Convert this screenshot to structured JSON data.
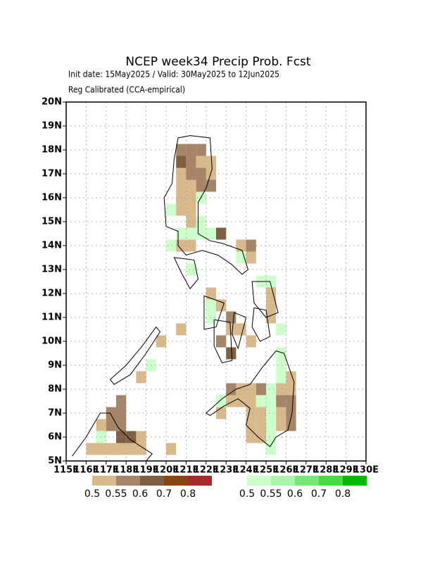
{
  "chart_data": {
    "type": "grid-map",
    "title": "NCEP week34 Precip Prob. Fcst",
    "subtitle": "Init date: 15May2025 / Valid: 30May2025 to 12Jun2025",
    "note": "Reg Calibrated (CCA-empirical)",
    "xlim": [
      115,
      130
    ],
    "ylim": [
      5,
      20
    ],
    "xticks": [
      {
        "value": 115,
        "label": "115E"
      },
      {
        "value": 116,
        "label": "116E"
      },
      {
        "value": 117,
        "label": "117E"
      },
      {
        "value": 118,
        "label": "118E"
      },
      {
        "value": 119,
        "label": "119E"
      },
      {
        "value": 120,
        "label": "120E"
      },
      {
        "value": 121,
        "label": "121E"
      },
      {
        "value": 122,
        "label": "122E"
      },
      {
        "value": 123,
        "label": "123E"
      },
      {
        "value": 124,
        "label": "124E"
      },
      {
        "value": 125,
        "label": "125E"
      },
      {
        "value": 126,
        "label": "126E"
      },
      {
        "value": 127,
        "label": "127E"
      },
      {
        "value": 128,
        "label": "128E"
      },
      {
        "value": 129,
        "label": "129E"
      },
      {
        "value": 130,
        "label": "130E"
      }
    ],
    "yticks": [
      {
        "value": 5,
        "label": "5N"
      },
      {
        "value": 6,
        "label": "6N"
      },
      {
        "value": 7,
        "label": "7N"
      },
      {
        "value": 8,
        "label": "8N"
      },
      {
        "value": 9,
        "label": "9N"
      },
      {
        "value": 10,
        "label": "10N"
      },
      {
        "value": 11,
        "label": "11N"
      },
      {
        "value": 12,
        "label": "12N"
      },
      {
        "value": 13,
        "label": "13N"
      },
      {
        "value": 14,
        "label": "14N"
      },
      {
        "value": 15,
        "label": "15N"
      },
      {
        "value": 16,
        "label": "16N"
      },
      {
        "value": 17,
        "label": "17N"
      },
      {
        "value": 18,
        "label": "18N"
      },
      {
        "value": 19,
        "label": "19N"
      },
      {
        "value": 20,
        "label": "20N"
      }
    ],
    "grid": true,
    "cell_size": 0.5,
    "dry_colors": [
      "#d8b98c",
      "#a68467",
      "#7f5f43",
      "#8b4513",
      "#a52a2a"
    ],
    "wet_colors": [
      "#ccffcc",
      "#aaf5aa",
      "#77e877",
      "#44dd44",
      "#00bb00"
    ],
    "colorbar_labels": [
      0.5,
      0.55,
      0.6,
      0.7,
      0.8
    ],
    "cells": [
      [
        120.5,
        17.75,
        2
      ],
      [
        121,
        17.75,
        2
      ],
      [
        121.5,
        17.75,
        2
      ],
      [
        120.5,
        17.25,
        3
      ],
      [
        121,
        17.25,
        2
      ],
      [
        121.5,
        17.25,
        1
      ],
      [
        122,
        17.25,
        1
      ],
      [
        120.5,
        16.75,
        1
      ],
      [
        121,
        16.75,
        2
      ],
      [
        121.5,
        16.75,
        2
      ],
      [
        122,
        16.75,
        1
      ],
      [
        120.5,
        16.25,
        1
      ],
      [
        121,
        16.25,
        1
      ],
      [
        121.5,
        16.25,
        2
      ],
      [
        122,
        16.25,
        2
      ],
      [
        120.5,
        15.75,
        1
      ],
      [
        121,
        15.75,
        1
      ],
      [
        121.5,
        15.75,
        -1
      ],
      [
        120,
        15.25,
        -1
      ],
      [
        120.5,
        15.25,
        1
      ],
      [
        121,
        15.25,
        1
      ],
      [
        121,
        14.75,
        1
      ],
      [
        121.5,
        14.75,
        -1
      ],
      [
        122,
        14.25,
        -1
      ],
      [
        120.5,
        14.25,
        -1
      ],
      [
        121,
        14.25,
        -1
      ],
      [
        121.5,
        14.25,
        -1
      ],
      [
        122.5,
        14.25,
        3
      ],
      [
        120,
        13.75,
        -1
      ],
      [
        120.5,
        13.75,
        1
      ],
      [
        121,
        13.75,
        1
      ],
      [
        121,
        12.75,
        -1
      ],
      [
        123.5,
        13.75,
        1
      ],
      [
        124,
        13.75,
        2
      ],
      [
        124,
        13.25,
        1
      ],
      [
        123.5,
        13.25,
        -1
      ],
      [
        122,
        11.75,
        1
      ],
      [
        122,
        11.25,
        -1
      ],
      [
        122.5,
        11.25,
        1
      ],
      [
        122,
        10.75,
        -1
      ],
      [
        123,
        10.75,
        2
      ],
      [
        123,
        10.25,
        1
      ],
      [
        122.5,
        9.75,
        2
      ],
      [
        123,
        9.25,
        3
      ],
      [
        123.5,
        10.25,
        1
      ],
      [
        124,
        9.75,
        1
      ],
      [
        124.5,
        12.25,
        -1
      ],
      [
        125,
        12.25,
        -1
      ],
      [
        125,
        11.75,
        1
      ],
      [
        125,
        11.25,
        1
      ],
      [
        125,
        10.75,
        1
      ],
      [
        125.5,
        10.25,
        -1
      ],
      [
        125.5,
        9.25,
        -1
      ],
      [
        122.5,
        7.25,
        -1
      ],
      [
        122.5,
        6.75,
        1
      ],
      [
        123,
        7.75,
        2
      ],
      [
        123.5,
        7.75,
        1
      ],
      [
        123,
        7.25,
        1
      ],
      [
        123.5,
        7.25,
        1
      ],
      [
        124,
        7.75,
        1
      ],
      [
        124.5,
        7.75,
        2
      ],
      [
        125,
        7.75,
        -1
      ],
      [
        125.5,
        7.75,
        1
      ],
      [
        126,
        7.75,
        1
      ],
      [
        125.5,
        8.25,
        -1
      ],
      [
        125.5,
        8.75,
        -1
      ],
      [
        126,
        8.25,
        1
      ],
      [
        124,
        7.25,
        1
      ],
      [
        124.5,
        7.25,
        -1
      ],
      [
        125,
        7.25,
        -1
      ],
      [
        125.5,
        7.25,
        2
      ],
      [
        126,
        7.25,
        2
      ],
      [
        124,
        6.75,
        1
      ],
      [
        124.5,
        6.75,
        1
      ],
      [
        125,
        6.75,
        -1
      ],
      [
        125.5,
        6.75,
        1
      ],
      [
        126,
        6.75,
        2
      ],
      [
        126,
        6.25,
        2
      ],
      [
        124,
        6.25,
        1
      ],
      [
        124.5,
        6.25,
        1
      ],
      [
        125,
        6.25,
        -1
      ],
      [
        125.5,
        6.25,
        1
      ],
      [
        124,
        5.75,
        1
      ],
      [
        124.5,
        5.75,
        1
      ],
      [
        125,
        5.75,
        -1
      ],
      [
        125,
        5.25,
        -1
      ],
      [
        118.5,
        8.25,
        1
      ],
      [
        119,
        8.75,
        -1
      ],
      [
        119.5,
        9.75,
        1
      ],
      [
        120.5,
        10.25,
        1
      ],
      [
        117,
        6.75,
        2
      ],
      [
        117.5,
        6.75,
        2
      ],
      [
        117.5,
        7.25,
        2
      ],
      [
        117,
        6.25,
        2
      ],
      [
        117.5,
        6.25,
        2
      ],
      [
        117.5,
        5.75,
        3
      ],
      [
        118,
        5.75,
        3
      ],
      [
        118.5,
        5.75,
        1
      ],
      [
        116.5,
        5.75,
        -1
      ],
      [
        116.5,
        6.25,
        1
      ],
      [
        116,
        5.25,
        1
      ],
      [
        116.5,
        5.25,
        1
      ],
      [
        117,
        5.25,
        1
      ],
      [
        117.5,
        5.25,
        1
      ],
      [
        118,
        5.25,
        1
      ],
      [
        118.5,
        5.25,
        1
      ],
      [
        120,
        5.25,
        1
      ]
    ]
  }
}
